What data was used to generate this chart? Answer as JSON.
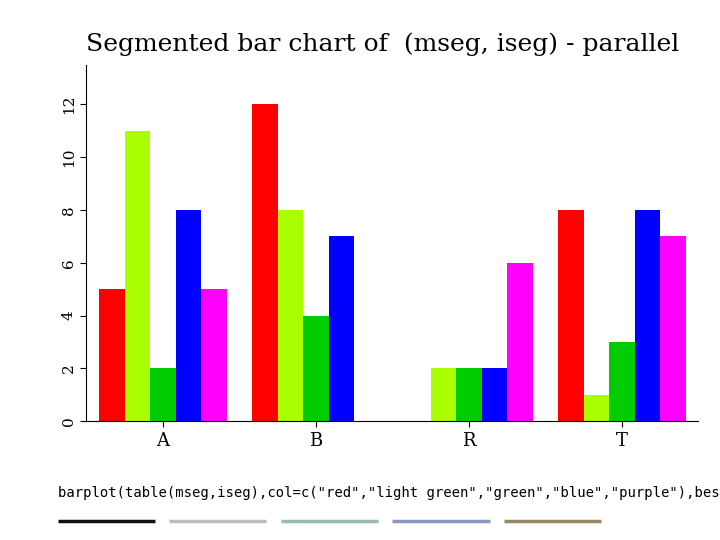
{
  "title": "Segmented bar chart of  (mseg, iseg) - parallel",
  "categories": [
    "A",
    "B",
    "R",
    "T"
  ],
  "colors": [
    "red",
    "#AAFF00",
    "#00CC00",
    "blue",
    "#FF00FF"
  ],
  "color_names": [
    "red",
    "light green",
    "green",
    "blue",
    "purple"
  ],
  "bar_data": {
    "A": [
      5,
      11,
      2,
      8,
      5
    ],
    "B": [
      12,
      8,
      4,
      7,
      0
    ],
    "R": [
      0,
      2,
      2,
      2,
      6
    ],
    "T": [
      8,
      1,
      3,
      8,
      7
    ]
  },
  "ylim": [
    0,
    13.5
  ],
  "yticks": [
    0,
    2,
    4,
    6,
    8,
    10,
    12
  ],
  "ytick_labels": [
    "0",
    "2",
    "4",
    "6",
    "8",
    "10",
    "12"
  ],
  "subtitle": "barplot(table(mseg,iseg),col=c(\"red\",\"light green\",\"green\",\"blue\",\"purple\"),beside=TRUE)",
  "title_fontsize": 18,
  "subtitle_fontsize": 10,
  "background_color": "white",
  "legend_line_colors": [
    "#222222",
    "#AAAAAA",
    "#AABBAA",
    "#8888AA",
    "#888855"
  ]
}
